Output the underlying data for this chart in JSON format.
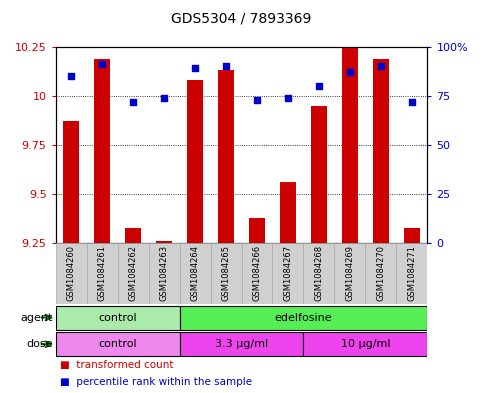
{
  "title": "GDS5304 / 7893369",
  "samples": [
    "GSM1084260",
    "GSM1084261",
    "GSM1084262",
    "GSM1084263",
    "GSM1084264",
    "GSM1084265",
    "GSM1084266",
    "GSM1084267",
    "GSM1084268",
    "GSM1084269",
    "GSM1084270",
    "GSM1084271"
  ],
  "transformed_count": [
    9.87,
    10.19,
    9.33,
    9.26,
    10.08,
    10.13,
    9.38,
    9.56,
    9.95,
    10.25,
    10.19,
    9.33
  ],
  "percentile_rank": [
    85,
    91,
    72,
    74,
    89,
    90,
    73,
    74,
    80,
    87,
    90,
    72
  ],
  "bar_bottom": 9.25,
  "ylim_left": [
    9.25,
    10.25
  ],
  "ylim_right": [
    0,
    100
  ],
  "yticks_left": [
    9.25,
    9.5,
    9.75,
    10.0,
    10.25
  ],
  "ytick_labels_left": [
    "9.25",
    "9.5",
    "9.75",
    "10",
    "10.25"
  ],
  "yticks_right": [
    0,
    25,
    50,
    75,
    100
  ],
  "ytick_labels_right": [
    "0",
    "25",
    "50",
    "75",
    "100%"
  ],
  "bar_color": "#cc0000",
  "dot_color": "#0000cc",
  "grid_color": "#000000",
  "agent_groups": [
    {
      "label": "control",
      "start": 0,
      "end": 4,
      "color": "#aaeaaa"
    },
    {
      "label": "edelfosine",
      "start": 4,
      "end": 12,
      "color": "#55ee55"
    }
  ],
  "dose_groups": [
    {
      "label": "control",
      "start": 0,
      "end": 4,
      "color": "#ee88ee"
    },
    {
      "label": "3.3 μg/ml",
      "start": 4,
      "end": 8,
      "color": "#ee44ee"
    },
    {
      "label": "10 μg/ml",
      "start": 8,
      "end": 12,
      "color": "#ee44ee"
    }
  ],
  "bg_color": "#ffffff",
  "plot_bg": "#ffffff",
  "tick_color_left": "#cc0000",
  "tick_color_right": "#0000cc",
  "sample_box_color": "#d0d0d0",
  "sample_box_border": "#aaaaaa"
}
